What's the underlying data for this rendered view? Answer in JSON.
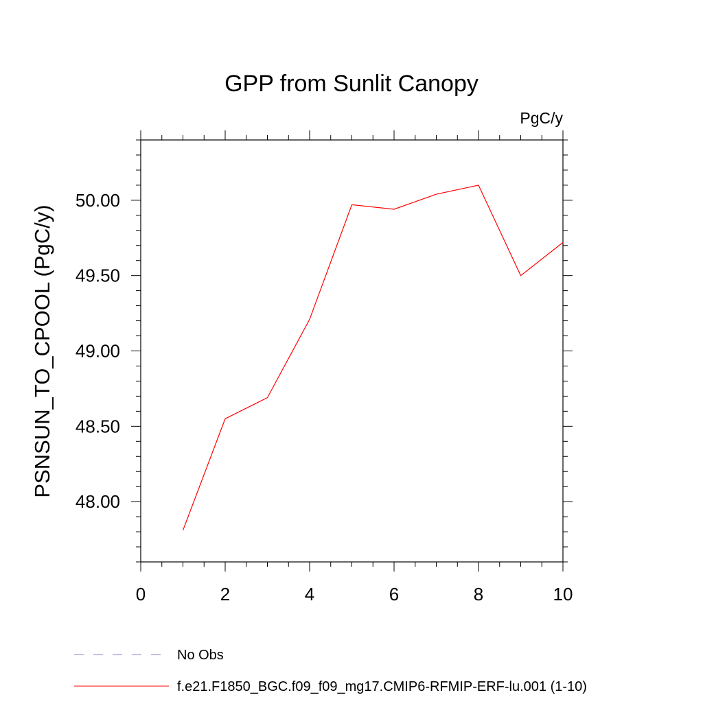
{
  "chart_data": {
    "type": "line",
    "title": "GPP from Sunlit Canopy",
    "units_label": "PgC/y",
    "ylabel": "PSNSUN_TO_CPOOL  (PgC/y)",
    "xlabel": "",
    "xlim": [
      0,
      10
    ],
    "ylim": [
      47.6,
      50.4
    ],
    "x_ticks": [
      0,
      2,
      4,
      6,
      8,
      10
    ],
    "x_tick_labels": [
      "0",
      "2",
      "4",
      "6",
      "8",
      "10"
    ],
    "y_ticks": [
      48.0,
      48.5,
      49.0,
      49.5,
      50.0
    ],
    "y_tick_labels": [
      "48.00",
      "48.50",
      "49.00",
      "49.50",
      "50.00"
    ],
    "grid": false,
    "legend_position": "bottom",
    "series": [
      {
        "name": "f.e21.F1850_BGC.f09_f09_mg17.CMIP6-RFMIP-ERF-lu.001 (1-10)",
        "color": "#ff0000",
        "style": "solid",
        "x": [
          1,
          2,
          3,
          4,
          5,
          6,
          7,
          8,
          9,
          10
        ],
        "y": [
          47.81,
          48.55,
          48.69,
          49.21,
          49.97,
          49.94,
          50.04,
          50.1,
          49.5,
          49.72
        ]
      }
    ],
    "legend": [
      {
        "label": "No Obs",
        "color": "#8a7fd0",
        "style": "dashed"
      },
      {
        "label": "f.e21.F1850_BGC.f09_f09_mg17.CMIP6-RFMIP-ERF-lu.001 (1-10)",
        "color": "#ff0000",
        "style": "solid"
      }
    ]
  }
}
